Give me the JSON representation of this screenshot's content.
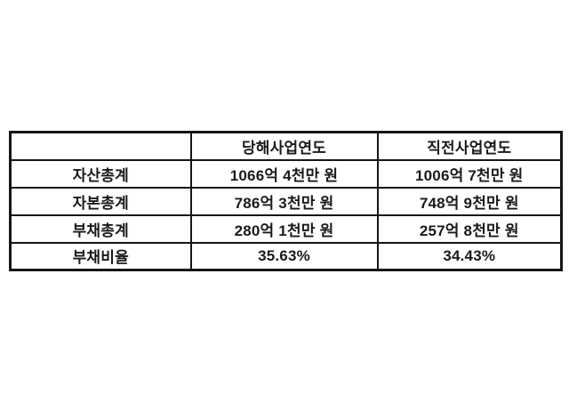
{
  "page": {
    "background_color": "#ffffff",
    "text_color": "#1a1a1a",
    "border_color": "#161616"
  },
  "table": {
    "headers": {
      "label": "",
      "current_year": "당해사업연도",
      "previous_year": "직전사업연도"
    },
    "rows": [
      {
        "label": "자산총계",
        "current": "1066억 4천만 원",
        "previous": "1006억 7천만 원"
      },
      {
        "label": "자본총계",
        "current": "786억 3천만 원",
        "previous": "748억 9천만 원"
      },
      {
        "label": "부채총계",
        "current": "280억 1천만 원",
        "previous": "257억 8천만 원"
      },
      {
        "label": "부채비율",
        "current": "35.63%",
        "previous": "34.43%"
      }
    ]
  }
}
